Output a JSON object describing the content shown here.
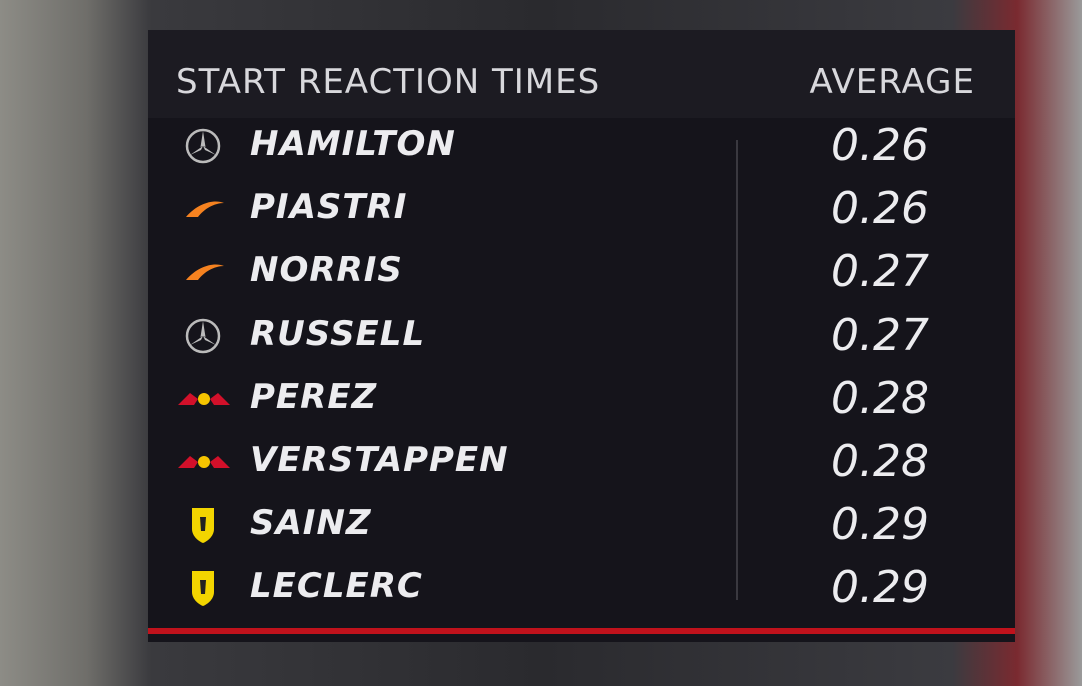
{
  "header": {
    "title": "START REACTION TIMES",
    "column": "AVERAGE"
  },
  "rows": [
    {
      "driver": "HAMILTON",
      "average": "0.26"
    },
    {
      "driver": "PIASTRI",
      "average": "0.26"
    },
    {
      "driver": "NORRIS",
      "average": "0.27"
    },
    {
      "driver": "RUSSELL",
      "average": "0.27"
    },
    {
      "driver": "PEREZ",
      "average": "0.28"
    },
    {
      "driver": "VERSTAPPEN",
      "average": "0.28"
    },
    {
      "driver": "SAINZ",
      "average": "0.29"
    },
    {
      "driver": "LECLERC",
      "average": "0.29"
    }
  ]
}
